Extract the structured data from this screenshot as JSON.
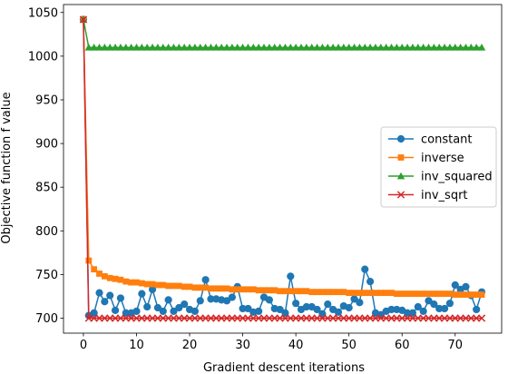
{
  "chart_data": {
    "type": "line",
    "xlabel": "Gradient descent iterations",
    "ylabel": "Objective function f value",
    "xlim": [
      -3.75,
      78.75
    ],
    "ylim": [
      682.9,
      1059.1
    ],
    "xticks": [
      0,
      10,
      20,
      30,
      40,
      50,
      60,
      70
    ],
    "yticks": [
      700,
      750,
      800,
      850,
      900,
      950,
      1000,
      1050
    ],
    "grid": false,
    "legend_position": "center-right",
    "series": [
      {
        "name": "constant",
        "color": "#1f77b4",
        "marker": "circle",
        "values": [
          1042,
          703,
          706,
          729,
          719,
          726,
          709,
          723,
          706,
          706,
          708,
          728,
          713,
          733,
          712,
          708,
          721,
          708,
          712,
          716,
          710,
          708,
          720,
          744,
          722,
          722,
          721,
          720,
          724,
          736,
          711,
          711,
          707,
          708,
          724,
          721,
          711,
          710,
          706,
          748,
          717,
          710,
          713,
          713,
          710,
          705,
          716,
          710,
          707,
          714,
          712,
          722,
          718,
          756,
          742,
          706,
          704,
          708,
          710,
          710,
          709,
          706,
          706,
          713,
          708,
          720,
          716,
          711,
          711,
          717,
          738,
          733,
          736,
          726,
          710,
          730
        ]
      },
      {
        "name": "inverse",
        "color": "#ff7f0e",
        "marker": "square",
        "values": [
          1042,
          766,
          756,
          751,
          748,
          746,
          745,
          744,
          742,
          741,
          741,
          740,
          739,
          739,
          738,
          738,
          737,
          737,
          737,
          736,
          736,
          735,
          735,
          735,
          734,
          734,
          734,
          734,
          733,
          733,
          733,
          733,
          733,
          732,
          732,
          732,
          732,
          731,
          731,
          731,
          731,
          731,
          731,
          730,
          730,
          730,
          730,
          730,
          730,
          730,
          729,
          729,
          729,
          729,
          729,
          729,
          729,
          729,
          729,
          728,
          728,
          728,
          728,
          728,
          728,
          728,
          728,
          728,
          728,
          728,
          727,
          727,
          727,
          727,
          727,
          727
        ]
      },
      {
        "name": "inv_squared",
        "color": "#2ca02c",
        "marker": "triangle",
        "values": [
          1042,
          1010,
          1010,
          1010,
          1010,
          1010,
          1010,
          1010,
          1010,
          1010,
          1010,
          1010,
          1010,
          1010,
          1010,
          1010,
          1010,
          1010,
          1010,
          1010,
          1010,
          1010,
          1010,
          1010,
          1010,
          1010,
          1010,
          1010,
          1010,
          1010,
          1010,
          1010,
          1010,
          1010,
          1010,
          1010,
          1010,
          1010,
          1010,
          1010,
          1010,
          1010,
          1010,
          1010,
          1010,
          1010,
          1010,
          1010,
          1010,
          1010,
          1010,
          1010,
          1010,
          1010,
          1010,
          1010,
          1010,
          1010,
          1010,
          1010,
          1010,
          1010,
          1010,
          1010,
          1010,
          1010,
          1010,
          1010,
          1010,
          1010,
          1010,
          1010,
          1010,
          1010,
          1010,
          1010
        ]
      },
      {
        "name": "inv_sqrt",
        "color": "#d62728",
        "marker": "x",
        "values": [
          1042,
          700,
          700,
          700,
          700,
          700,
          700,
          700,
          700,
          700,
          700,
          700,
          700,
          700,
          700,
          700,
          700,
          700,
          700,
          700,
          700,
          700,
          700,
          700,
          700,
          700,
          700,
          700,
          700,
          700,
          700,
          700,
          700,
          700,
          700,
          700,
          700,
          700,
          700,
          700,
          700,
          700,
          700,
          700,
          700,
          700,
          700,
          700,
          700,
          700,
          700,
          700,
          700,
          700,
          700,
          700,
          700,
          700,
          700,
          700,
          700,
          700,
          700,
          700,
          700,
          700,
          700,
          700,
          700,
          700,
          700,
          700,
          700,
          700,
          700,
          700
        ]
      }
    ]
  }
}
